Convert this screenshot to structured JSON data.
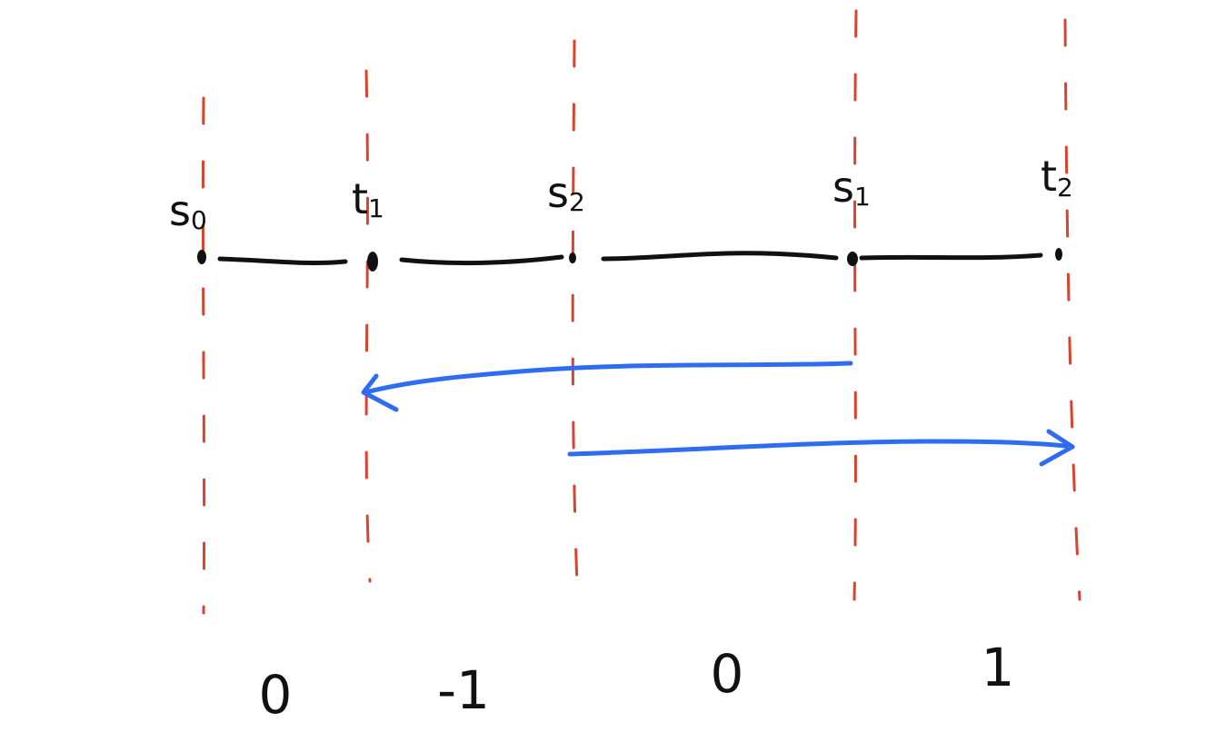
{
  "points": [
    {
      "label": "s",
      "sub": "0"
    },
    {
      "label": "t",
      "sub": "1"
    },
    {
      "label": "s",
      "sub": "2"
    },
    {
      "label": "s",
      "sub": "1"
    },
    {
      "label": "t",
      "sub": "2"
    }
  ],
  "regions": [
    0,
    -1,
    0,
    1
  ]
}
